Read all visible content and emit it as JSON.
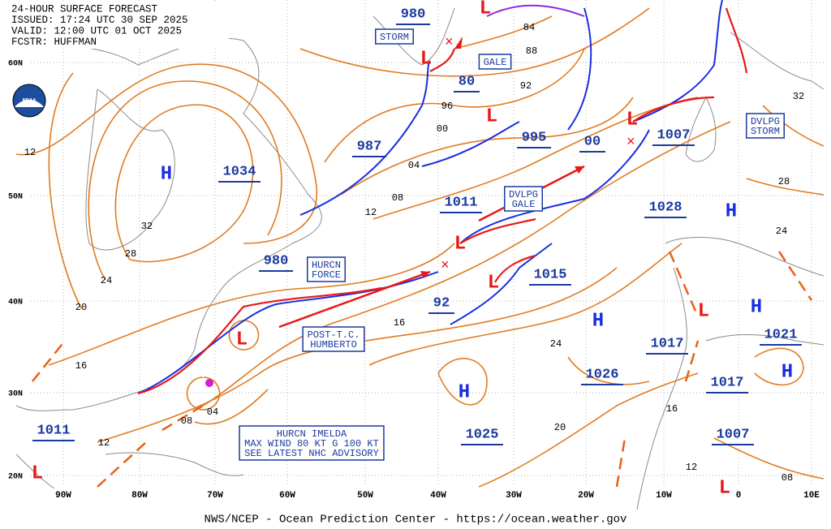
{
  "header": {
    "lines": [
      "24-HOUR SURFACE FORECAST",
      "ISSUED: 17:24 UTC 30 SEP 2025",
      "VALID:  12:00 UTC 01 OCT 2025",
      "FCSTR:  HUFFMAN"
    ]
  },
  "logo": "NOAA",
  "latitudes": [
    "60N",
    "50N",
    "40N",
    "30N",
    "20N"
  ],
  "longitudes": [
    "90W",
    "80W",
    "70W",
    "60W",
    "50W",
    "40W",
    "30W",
    "20W",
    "10W",
    "0",
    "10E"
  ],
  "pressure_labels": [
    "1034",
    "980",
    "987",
    "1011",
    "995",
    "1007",
    "1028",
    "1015",
    "1026",
    "1017",
    "1021",
    "1017",
    "1025",
    "1007",
    "1011",
    "980",
    "80",
    "00",
    "92"
  ],
  "highs": [
    "H",
    "H",
    "H",
    "H",
    "H",
    "H"
  ],
  "lows": [
    "L",
    "L",
    "L",
    "L",
    "L",
    "L",
    "L",
    "L",
    "L",
    "L"
  ],
  "isobar_labels": [
    "12",
    "32",
    "28",
    "24",
    "20",
    "16",
    "08",
    "04",
    "12",
    "04",
    "08",
    "12",
    "96",
    "00",
    "92",
    "84",
    "88",
    "16",
    "24",
    "20",
    "16",
    "12",
    "08",
    "32",
    "28",
    "24"
  ],
  "boxes": [
    [
      "STORM"
    ],
    [
      "GALE"
    ],
    [
      "DVLPG",
      "STORM"
    ],
    [
      "DVLPG",
      "GALE"
    ],
    [
      "HURCN",
      "FORCE"
    ],
    [
      "POST-T.C.",
      "HUMBERTO"
    ],
    [
      "HURCN IMELDA",
      "MAX WIND 80 KT G 100 KT",
      "SEE LATEST NHC ADVISORY"
    ]
  ],
  "footer": "NWS/NCEP - Ocean Prediction Center - https://ocean.weather.gov"
}
